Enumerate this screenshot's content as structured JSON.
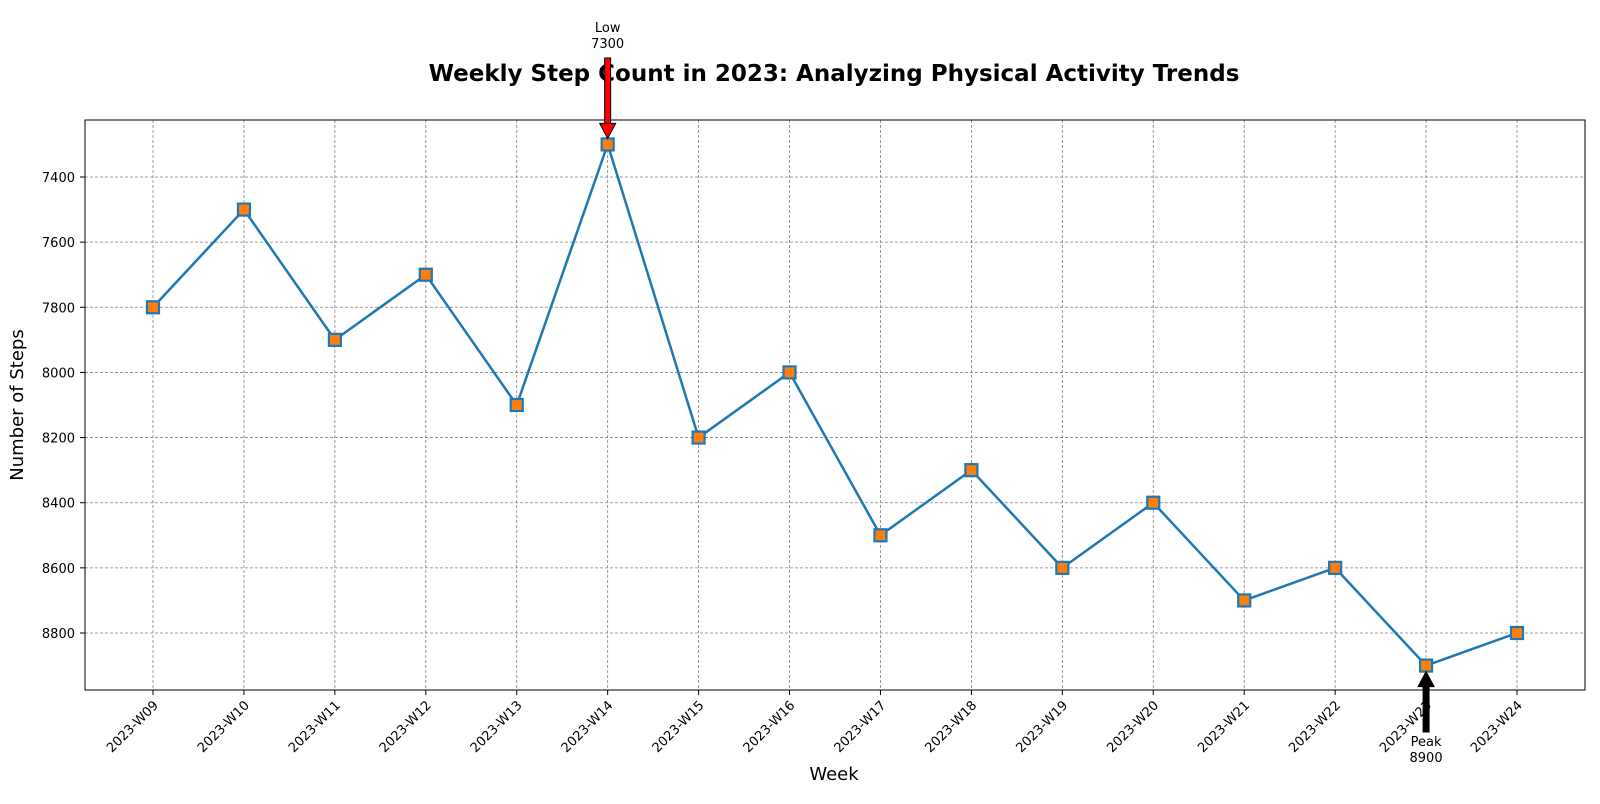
{
  "chart_data": {
    "type": "line",
    "title": "Weekly Step Count in 2023: Analyzing Physical Activity Trends",
    "xlabel": "Week",
    "ylabel": "Number of Steps",
    "categories": [
      "2023-W09",
      "2023-W10",
      "2023-W11",
      "2023-W12",
      "2023-W13",
      "2023-W14",
      "2023-W15",
      "2023-W16",
      "2023-W17",
      "2023-W18",
      "2023-W19",
      "2023-W20",
      "2023-W21",
      "2023-W22",
      "2023-W23",
      "2023-W24"
    ],
    "series": [
      {
        "values": [
          7800,
          7500,
          7900,
          7700,
          8100,
          7300,
          8200,
          8000,
          8500,
          8300,
          8600,
          8400,
          8700,
          8600,
          8900,
          8800
        ],
        "line_color": "#1f77b4",
        "marker_color": "#ff7f0e",
        "marker": "square"
      }
    ],
    "ylim": [
      8975,
      7225
    ],
    "y_inverted": true,
    "yticks": [
      7400,
      7600,
      7800,
      8000,
      8200,
      8400,
      8600,
      8800
    ],
    "grid": true,
    "annotations": [
      {
        "label": "Low",
        "value_text": "7300",
        "category": "2023-W14",
        "value": 7300,
        "arrow_color": "#ff0000",
        "direction": "down-from-above"
      },
      {
        "label": "Peak",
        "value_text": "8900",
        "category": "2023-W23",
        "value": 8900,
        "arrow_color": "#000000",
        "direction": "up-from-below"
      }
    ]
  }
}
